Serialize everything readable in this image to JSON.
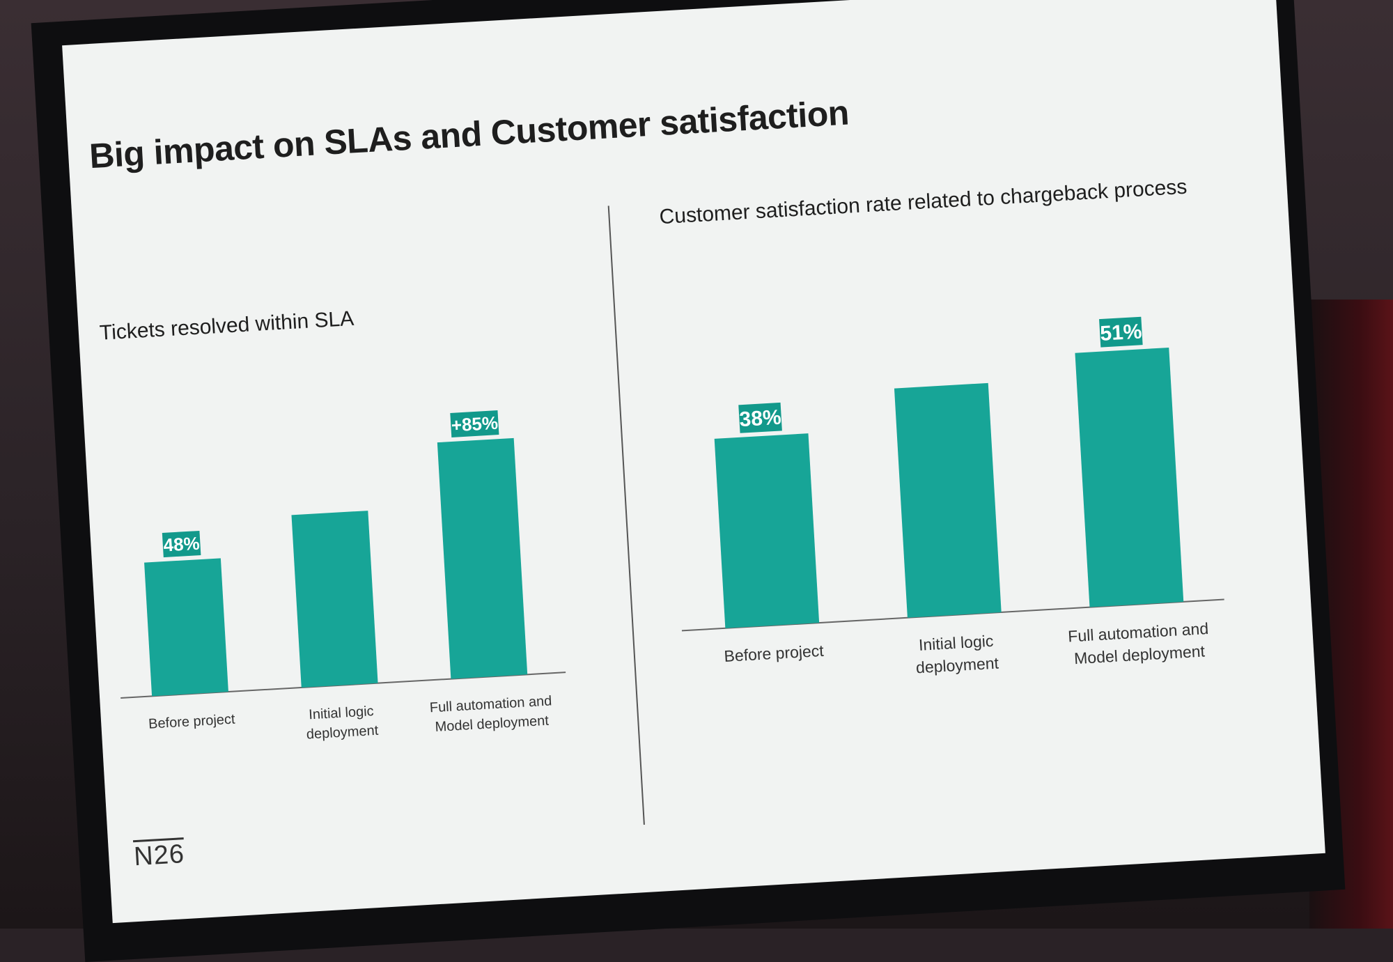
{
  "slide": {
    "title": "Big impact on SLAs and Customer satisfaction",
    "logo": "N26"
  },
  "colors": {
    "bar": "#17a597",
    "label_bg": "#12998b",
    "label_text": "#ffffff"
  },
  "chart_data": [
    {
      "type": "bar",
      "title": "Tickets resolved within SLA",
      "categories": [
        [
          "Before project"
        ],
        [
          "Initial logic",
          "deployment"
        ],
        [
          "Full automation and",
          "Model deployment"
        ]
      ],
      "values": [
        48,
        62,
        85
      ],
      "value_labels": [
        "48%",
        "",
        "+85%"
      ],
      "ylim": [
        0,
        100
      ],
      "grid": false
    },
    {
      "type": "bar",
      "title": "Customer satisfaction rate related to chargeback process",
      "categories": [
        [
          "Before project"
        ],
        [
          "Initial logic",
          "deployment"
        ],
        [
          "Full automation and",
          "Model deployment"
        ]
      ],
      "values": [
        38,
        46,
        51
      ],
      "value_labels": [
        "38%",
        "",
        "51%"
      ],
      "ylim": [
        0,
        60
      ],
      "grid": false
    }
  ]
}
